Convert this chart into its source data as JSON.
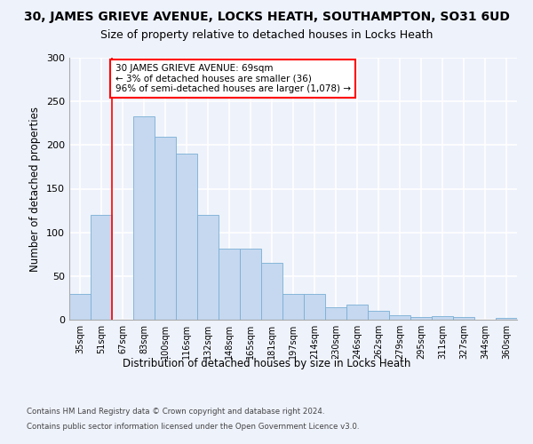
{
  "title1": "30, JAMES GRIEVE AVENUE, LOCKS HEATH, SOUTHAMPTON, SO31 6UD",
  "title2": "Size of property relative to detached houses in Locks Heath",
  "xlabel": "Distribution of detached houses by size in Locks Heath",
  "ylabel": "Number of detached properties",
  "categories": [
    "35sqm",
    "51sqm",
    "67sqm",
    "83sqm",
    "100sqm",
    "116sqm",
    "132sqm",
    "148sqm",
    "165sqm",
    "181sqm",
    "197sqm",
    "214sqm",
    "230sqm",
    "246sqm",
    "262sqm",
    "279sqm",
    "295sqm",
    "311sqm",
    "327sqm",
    "344sqm",
    "360sqm"
  ],
  "values": [
    30,
    120,
    0,
    233,
    210,
    190,
    120,
    81,
    81,
    65,
    30,
    30,
    14,
    17,
    10,
    5,
    3,
    4,
    3,
    0,
    2
  ],
  "bar_color": "#c5d8f0",
  "bar_edge_color": "#7aafd4",
  "red_line_x": 2.0,
  "annotation_line1": "30 JAMES GRIEVE AVENUE: 69sqm",
  "annotation_line2": "← 3% of detached houses are smaller (36)",
  "annotation_line3": "96% of semi-detached houses are larger (1,078) →",
  "annotation_box_color": "white",
  "annotation_box_edge": "red",
  "footer1": "Contains HM Land Registry data © Crown copyright and database right 2024.",
  "footer2": "Contains public sector information licensed under the Open Government Licence v3.0.",
  "ylim": [
    0,
    300
  ],
  "yticks": [
    0,
    50,
    100,
    150,
    200,
    250,
    300
  ],
  "background_color": "#eef2fb",
  "grid_color": "white",
  "title1_fontsize": 10,
  "title2_fontsize": 9,
  "title1_fontweight": "normal"
}
